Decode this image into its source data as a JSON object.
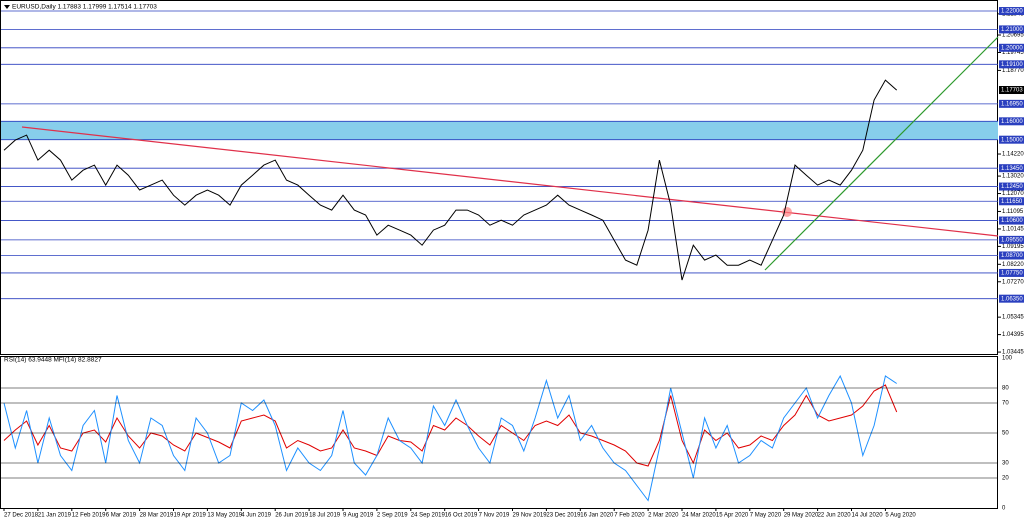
{
  "chart_data": [
    {
      "type": "line",
      "title": "EURUSD,Daily  1.17883 1.17999 1.17514 1.17703",
      "color": "#000000",
      "categories": [
        "27 Dec 2018",
        null,
        null,
        "21 Jan 2019",
        null,
        null,
        "12 Feb 2019",
        null,
        null,
        "6 Mar 2019",
        null,
        null,
        "28 Mar 2019",
        null,
        null,
        "19 Apr 2019",
        null,
        null,
        "13 May 2019",
        null,
        null,
        "4 Jun 2019",
        null,
        null,
        "26 Jun 2019",
        null,
        null,
        "18 Jul 2019",
        null,
        null,
        "9 Aug 2019",
        null,
        null,
        "2 Sep 2019",
        null,
        null,
        "24 Sep 2019",
        null,
        null,
        "16 Oct 2019",
        null,
        null,
        "7 Nov 2019",
        null,
        null,
        "29 Nov 2019",
        null,
        null,
        "23 Dec 2019",
        null,
        null,
        "16 Jan 2020",
        null,
        null,
        "7 Feb 2020",
        null,
        null,
        "2 Mar 2020",
        null,
        null,
        "24 Mar 2020",
        null,
        null,
        "15 Apr 2020",
        null,
        null,
        "7 May 2020",
        null,
        null,
        "29 May 2020",
        null,
        null,
        "22 Jun 2020",
        null,
        null,
        "14 Jul 2020",
        null,
        null,
        "5 Aug 2020",
        null
      ],
      "values": [
        1.1443,
        1.1498,
        1.1525,
        1.1389,
        1.1443,
        1.1389,
        1.128,
        1.1334,
        1.1362,
        1.1253,
        1.1362,
        1.1307,
        1.1226,
        1.1253,
        1.128,
        1.1198,
        1.1144,
        1.1198,
        1.1226,
        1.1198,
        1.1144,
        1.1253,
        1.1307,
        1.1362,
        1.1389,
        1.128,
        1.1253,
        1.1198,
        1.1144,
        1.1117,
        1.1198,
        1.1117,
        1.109,
        1.0981,
        1.1035,
        1.1008,
        1.0981,
        1.0926,
        1.1008,
        1.1035,
        1.1117,
        1.1117,
        1.109,
        1.1035,
        1.1062,
        1.1035,
        1.109,
        1.1117,
        1.1144,
        1.1198,
        1.1144,
        1.1117,
        1.109,
        1.1062,
        1.0953,
        1.0845,
        1.0817,
        1.1008,
        1.1389,
        1.1144,
        1.0736,
        1.0926,
        1.0845,
        1.0872,
        1.0817,
        1.0817,
        1.0845,
        1.0817,
        1.0953,
        1.109,
        1.1362,
        1.1307,
        1.1253,
        1.128,
        1.1253,
        1.1334,
        1.1443,
        1.1716,
        1.1824,
        1.177
      ],
      "ylim": [
        1.0334,
        1.226
      ],
      "yticks": [
        1.21845,
        1.20695,
        1.19745,
        {
          "value": 1.1877,
          "label": "1.18770"
        },
        {
          "value": 1.1422,
          "label": "1.14220"
        },
        {
          "value": 1.1302,
          "label": "1.13020"
        },
        {
          "value": 1.1207,
          "label": "1.12070"
        },
        1.11095,
        1.10145,
        1.09195,
        {
          "value": 1.0822,
          "label": "1.08220"
        },
        {
          "value": 1.0727,
          "label": "1.07270"
        },
        1.05345,
        1.04395,
        1.03445
      ],
      "levels": [
        {
          "value": 1.22,
          "label": "1.22000"
        },
        {
          "value": 1.21,
          "label": "1.21000"
        },
        {
          "value": 1.2,
          "label": "1.20000"
        },
        {
          "value": 1.191,
          "label": "1.19100"
        },
        {
          "value": 1.1695,
          "label": "1.16950"
        },
        {
          "value": 1.16,
          "label": "1.16000"
        },
        {
          "value": 1.15,
          "label": "1.15000"
        },
        {
          "value": 1.1345,
          "label": "1.13450"
        },
        {
          "value": 1.1245,
          "label": "1.12450"
        },
        {
          "value": 1.1165,
          "label": "1.11650"
        },
        {
          "value": 1.106,
          "label": "1.10600"
        },
        {
          "value": 1.0955,
          "label": "1.09550"
        },
        {
          "value": 1.087,
          "label": "1.08700"
        },
        {
          "value": 1.0775,
          "label": "1.07750"
        },
        {
          "value": 1.0635,
          "label": "1.06350"
        }
      ],
      "level_color": "#2a3fbf",
      "zone_color": "#87ceeb",
      "current_price": 1.17703
    },
    {
      "type": "line",
      "title": "RSI(14) 63.9448  MFI(14) 82.8827",
      "series": [
        {
          "color": "#e00000",
          "values": [
            45,
            52,
            58,
            42,
            55,
            40,
            38,
            50,
            52,
            44,
            60,
            48,
            40,
            50,
            48,
            42,
            38,
            50,
            47,
            44,
            40,
            58,
            60,
            62,
            58,
            40,
            45,
            42,
            38,
            40,
            52,
            40,
            38,
            35,
            48,
            45,
            44,
            38,
            55,
            52,
            60,
            55,
            48,
            42,
            55,
            50,
            45,
            55,
            58,
            55,
            62,
            50,
            48,
            45,
            42,
            38,
            30,
            28,
            45,
            75,
            45,
            30,
            52,
            45,
            50,
            40,
            42,
            48,
            45,
            55,
            62,
            75,
            62,
            58,
            60,
            62,
            68,
            78,
            82,
            64
          ]
        },
        {
          "color": "#1e90ff",
          "values": [
            70,
            40,
            65,
            30,
            60,
            35,
            25,
            55,
            65,
            30,
            75,
            45,
            30,
            60,
            55,
            35,
            25,
            60,
            50,
            30,
            35,
            70,
            65,
            72,
            55,
            25,
            40,
            30,
            25,
            35,
            65,
            30,
            22,
            35,
            60,
            45,
            40,
            30,
            68,
            55,
            72,
            55,
            40,
            30,
            60,
            55,
            38,
            60,
            85,
            60,
            75,
            45,
            55,
            40,
            30,
            25,
            15,
            5,
            40,
            80,
            50,
            20,
            60,
            40,
            55,
            30,
            35,
            45,
            40,
            60,
            70,
            80,
            60,
            75,
            88,
            70,
            35,
            55,
            88,
            83
          ]
        }
      ],
      "ylim": [
        0,
        100
      ],
      "yticks": [
        0,
        20,
        30,
        50,
        70,
        80,
        100
      ]
    }
  ]
}
